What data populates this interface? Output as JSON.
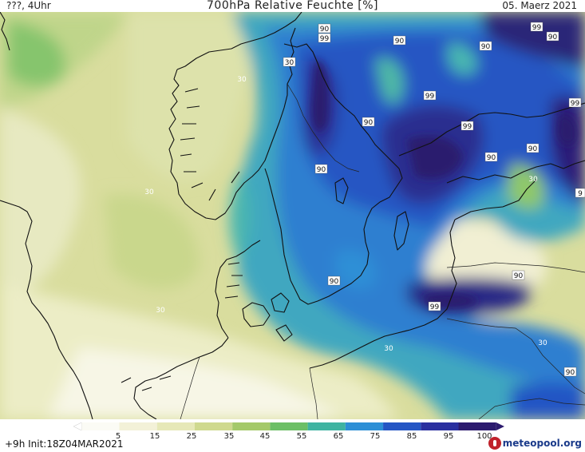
{
  "header": {
    "left": "???, 4Uhr",
    "title": "700hPa Relative Feuchte [%]",
    "date": "05. Maerz 2021"
  },
  "footer": {
    "run_info": "+9h  Init:18Z04MAR2021",
    "logo_text": "meteopool.org"
  },
  "legend": {
    "ticks": [
      "5",
      "15",
      "25",
      "35",
      "45",
      "55",
      "65",
      "75",
      "85",
      "95",
      "100"
    ],
    "colors": [
      "#fbfbf5",
      "#f3f1d8",
      "#e6e8b8",
      "#cfd98f",
      "#a4c96a",
      "#6cbf66",
      "#3fb3a1",
      "#2d8fd6",
      "#2455c4",
      "#2a2f9f",
      "#2c1a6e"
    ]
  },
  "contour_labels": [
    "90",
    "99",
    "90",
    "90",
    "30",
    "99",
    "90",
    "99",
    "99",
    "90",
    "90",
    "90",
    "30",
    "90",
    "30",
    "90",
    "99",
    "90",
    "30",
    "30",
    "90",
    "30"
  ]
}
